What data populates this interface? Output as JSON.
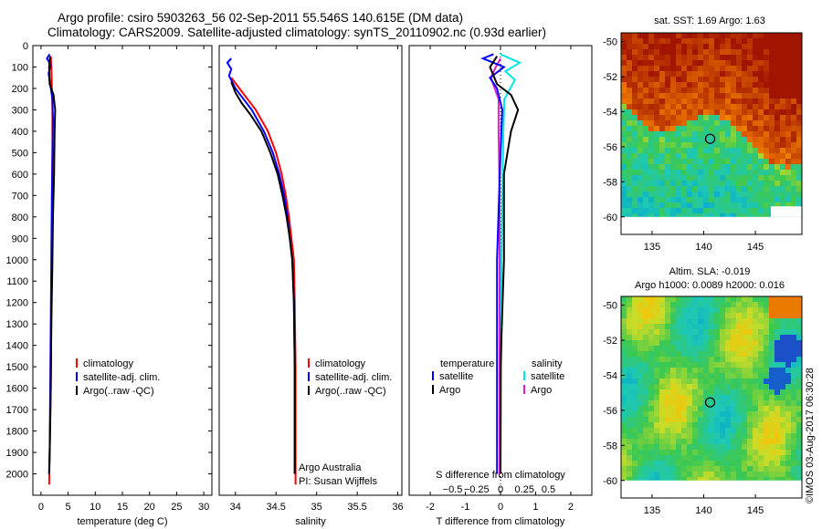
{
  "header": {
    "line1": "Argo profile: csiro 5903263_56 02-Sep-2011 55.546S 140.615E (DM data)",
    "line2": "Climatology: CARS2009. Satellite-adjusted climatology: synTS_20110902.nc (0.93d earlier)"
  },
  "colors": {
    "climatology": "#ff0000",
    "satellite": "#0000ff",
    "argo": "#000000",
    "satellite_diff": "#00e5e5",
    "argo_diff": "#e21ed0"
  },
  "chart_data": [
    {
      "id": "temperature",
      "type": "line",
      "xlabel": "temperature (deg C)",
      "ylabel": "",
      "xlim": [
        -1.5,
        31.5
      ],
      "ylim": [
        2100,
        0
      ],
      "xticks": [
        0,
        5,
        10,
        15,
        20,
        25,
        30
      ],
      "yticks": [
        0,
        100,
        200,
        300,
        400,
        500,
        600,
        700,
        800,
        900,
        1000,
        1100,
        1200,
        1300,
        1400,
        1500,
        1600,
        1700,
        1800,
        1900,
        2000
      ],
      "legend": [
        "climatology",
        "satellite-adj. clim.",
        "Argo(..raw -QC)"
      ],
      "series": [
        {
          "name": "climatology",
          "points": [
            [
              1.8,
              50
            ],
            [
              1.9,
              100
            ],
            [
              2.0,
              200
            ],
            [
              2.1,
              300
            ],
            [
              2.1,
              500
            ],
            [
              2.05,
              700
            ],
            [
              2.0,
              1000
            ],
            [
              1.9,
              1300
            ],
            [
              1.8,
              1600
            ],
            [
              1.6,
              1900
            ],
            [
              1.5,
              2050
            ]
          ]
        },
        {
          "name": "satellite-adj. clim.",
          "points": [
            [
              1.6,
              40
            ],
            [
              1.1,
              60
            ],
            [
              1.8,
              90
            ],
            [
              1.4,
              130
            ],
            [
              1.7,
              180
            ],
            [
              2.1,
              250
            ],
            [
              2.2,
              350
            ],
            [
              2.1,
              500
            ],
            [
              2.0,
              700
            ],
            [
              1.9,
              1000
            ],
            [
              1.8,
              1300
            ],
            [
              1.7,
              1600
            ],
            [
              1.6,
              1900
            ],
            [
              1.5,
              2000
            ]
          ]
        },
        {
          "name": "Argo(..raw -QC)",
          "points": [
            [
              1.7,
              50
            ],
            [
              1.5,
              100
            ],
            [
              1.6,
              180
            ],
            [
              2.3,
              230
            ],
            [
              2.6,
              300
            ],
            [
              2.5,
              400
            ],
            [
              2.4,
              600
            ],
            [
              2.2,
              800
            ],
            [
              2.1,
              1000
            ],
            [
              1.9,
              1300
            ],
            [
              1.8,
              1600
            ],
            [
              1.6,
              1900
            ],
            [
              1.5,
              2000
            ]
          ]
        }
      ]
    },
    {
      "id": "salinity",
      "type": "line",
      "xlabel": "salinity",
      "ylabel": "",
      "xlim": [
        33.8,
        36.05
      ],
      "ylim": [
        2100,
        0
      ],
      "xticks": [
        34,
        34.5,
        35,
        35.5,
        36
      ],
      "xtick_labels": [
        "34",
        "34.5",
        "35",
        "35.5",
        "36"
      ],
      "legend": [
        "climatology",
        "satellite-adj. clim.",
        "Argo(..raw -QC)"
      ],
      "series": [
        {
          "name": "climatology",
          "points": [
            [
              33.95,
              150
            ],
            [
              34.05,
              200
            ],
            [
              34.15,
              250
            ],
            [
              34.25,
              300
            ],
            [
              34.4,
              400
            ],
            [
              34.5,
              500
            ],
            [
              34.57,
              600
            ],
            [
              34.62,
              700
            ],
            [
              34.66,
              800
            ],
            [
              34.69,
              900
            ],
            [
              34.72,
              1000
            ],
            [
              34.73,
              1200
            ],
            [
              34.74,
              1500
            ],
            [
              34.74,
              1800
            ],
            [
              34.74,
              2050
            ]
          ]
        },
        {
          "name": "satellite-adj. clim.",
          "points": [
            [
              33.95,
              60
            ],
            [
              33.9,
              80
            ],
            [
              33.95,
              110
            ],
            [
              33.92,
              140
            ],
            [
              34.0,
              200
            ],
            [
              34.1,
              250
            ],
            [
              34.2,
              300
            ],
            [
              34.35,
              400
            ],
            [
              34.46,
              500
            ],
            [
              34.54,
              600
            ],
            [
              34.6,
              700
            ],
            [
              34.64,
              800
            ],
            [
              34.67,
              900
            ],
            [
              34.7,
              1000
            ],
            [
              34.72,
              1200
            ],
            [
              34.73,
              1500
            ],
            [
              34.73,
              1800
            ],
            [
              34.73,
              2000
            ]
          ]
        },
        {
          "name": "Argo(..raw -QC)",
          "points": [
            [
              33.95,
              170
            ],
            [
              34.0,
              220
            ],
            [
              34.08,
              270
            ],
            [
              34.18,
              320
            ],
            [
              34.32,
              400
            ],
            [
              34.43,
              500
            ],
            [
              34.52,
              600
            ],
            [
              34.58,
              700
            ],
            [
              34.63,
              800
            ],
            [
              34.67,
              900
            ],
            [
              34.7,
              1000
            ],
            [
              34.72,
              1200
            ],
            [
              34.73,
              1500
            ],
            [
              34.73,
              1800
            ],
            [
              34.73,
              2000
            ]
          ]
        }
      ],
      "annotation_line1": "Argo Australia",
      "annotation_line2": "PI: Susan Wijffels"
    },
    {
      "id": "difference",
      "type": "line",
      "xlabel": "T difference from climatology",
      "top_label": "S difference from climatology",
      "xlim": [
        -2.6,
        2.6
      ],
      "ylim": [
        2100,
        0
      ],
      "xticks": [
        -2,
        -1,
        0,
        1,
        2
      ],
      "s_ticks": [
        -0.5,
        -0.25,
        0,
        0.25,
        0.5
      ],
      "s_tick_labels": [
        "−0.5",
        "−0.25",
        "0",
        "0.25",
        "0.5"
      ],
      "legend_temperature": "temperature",
      "legend_salinity": "salinity",
      "legend_satellite": "satellite",
      "legend_argo": "Argo",
      "series": [
        {
          "name": "T satellite",
          "points": [
            [
              -0.2,
              40
            ],
            [
              -0.5,
              60
            ],
            [
              0.1,
              100
            ],
            [
              -0.3,
              150
            ],
            [
              -0.1,
              200
            ],
            [
              0.05,
              300
            ],
            [
              0.0,
              500
            ],
            [
              -0.1,
              1000
            ],
            [
              -0.1,
              1500
            ],
            [
              -0.1,
              2000
            ]
          ]
        },
        {
          "name": "T Argo",
          "points": [
            [
              -0.1,
              50
            ],
            [
              -0.3,
              100
            ],
            [
              -0.1,
              180
            ],
            [
              0.3,
              230
            ],
            [
              0.5,
              300
            ],
            [
              0.3,
              400
            ],
            [
              0.1,
              600
            ],
            [
              0.1,
              1000
            ],
            [
              0.0,
              1500
            ],
            [
              0.0,
              2000
            ]
          ]
        },
        {
          "name": "S satellite",
          "points": [
            [
              0.0,
              40
            ],
            [
              0.2,
              80
            ],
            [
              0.05,
              120
            ],
            [
              0.15,
              160
            ],
            [
              0.04,
              250
            ],
            [
              0.03,
              400
            ],
            [
              0.02,
              700
            ],
            [
              0.01,
              1000
            ],
            [
              0.01,
              1500
            ],
            [
              0.0,
              2000
            ]
          ]
        },
        {
          "name": "S Argo",
          "points": [
            [
              0.0,
              60
            ],
            [
              -0.05,
              100
            ],
            [
              -0.1,
              150
            ],
            [
              -0.02,
              250
            ],
            [
              -0.02,
              400
            ],
            [
              -0.01,
              700
            ],
            [
              -0.01,
              1000
            ],
            [
              -0.01,
              1500
            ],
            [
              -0.01,
              2000
            ]
          ]
        }
      ]
    },
    {
      "id": "sst_map",
      "type": "heatmap",
      "title": "sat. SST: 1.69 Argo: 1.63",
      "xlim": [
        132,
        149.5
      ],
      "ylim": [
        -61,
        -49.5
      ],
      "xticks": [
        135,
        140,
        145
      ],
      "yticks": [
        -50,
        -52,
        -54,
        -56,
        -58,
        -60
      ],
      "marker": [
        140.615,
        -55.546
      ]
    },
    {
      "id": "sla_map",
      "type": "heatmap",
      "title": "Altim. SLA: -0.019",
      "subtitle": "Argo h1000: 0.0089 h2000: 0.016",
      "xlim": [
        132,
        149.5
      ],
      "ylim": [
        -61,
        -49.5
      ],
      "xticks": [
        135,
        140,
        145
      ],
      "yticks": [
        -50,
        -52,
        -54,
        -56,
        -58,
        -60
      ],
      "marker": [
        140.615,
        -55.546
      ]
    }
  ],
  "footer": {
    "stamp": "©IMOS 03-Aug-2017 06:30:28"
  }
}
